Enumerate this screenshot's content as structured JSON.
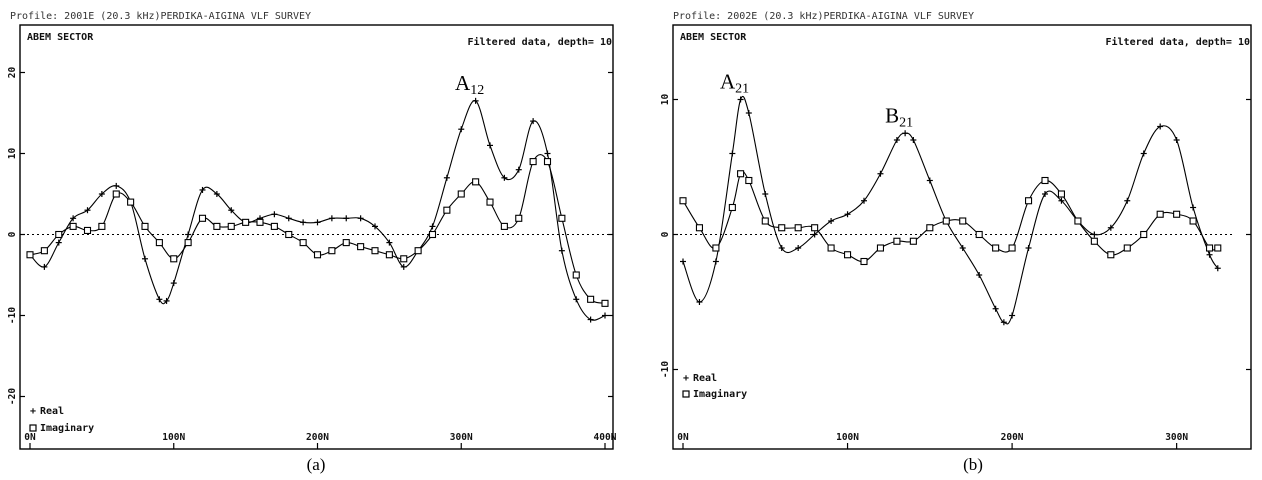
{
  "chart_data": [
    {
      "type": "line",
      "panel_caption": "(a)",
      "title": "Profile: 2001E (20.3 kHz)PERDIKA-AIGINA VLF SURVEY",
      "instrument_label": "ABEM SECTOR",
      "filter_label": "Filtered data, depth= 10",
      "xlim": [
        0,
        400
      ],
      "ylim": [
        -25,
        25
      ],
      "x_ticks": [
        0,
        100,
        200,
        300,
        400
      ],
      "x_tick_labels": [
        "0N",
        "100N",
        "200N",
        "300N",
        "400N"
      ],
      "y_ticks": [
        -20,
        -10,
        0,
        10,
        20
      ],
      "y_tick_labels": [
        "-20",
        "-10",
        "0",
        "10",
        "20"
      ],
      "zero_line": true,
      "legend_position": "bottom-left",
      "series": [
        {
          "name": "Real",
          "marker": "+",
          "x": [
            0,
            10,
            20,
            30,
            40,
            50,
            60,
            70,
            80,
            90,
            95,
            100,
            110,
            120,
            130,
            140,
            150,
            160,
            170,
            180,
            190,
            200,
            210,
            220,
            230,
            240,
            250,
            260,
            270,
            280,
            290,
            300,
            310,
            320,
            330,
            340,
            350,
            360,
            370,
            380,
            390,
            400
          ],
          "y": [
            -2.5,
            -4,
            -1,
            2,
            3,
            5,
            6,
            4,
            -3,
            -8,
            -8.2,
            -6,
            0,
            5.5,
            5,
            3,
            1.5,
            2,
            2.5,
            2,
            1.5,
            1.5,
            2,
            2,
            2,
            1,
            -1,
            -4,
            -2,
            1,
            7,
            13,
            16.5,
            11,
            7,
            8,
            14,
            10,
            -2,
            -8,
            -10.5,
            -10
          ]
        },
        {
          "name": "Imaginary",
          "marker": "square",
          "x": [
            0,
            10,
            20,
            30,
            40,
            50,
            60,
            70,
            80,
            90,
            100,
            110,
            120,
            130,
            140,
            150,
            160,
            170,
            180,
            190,
            200,
            210,
            220,
            230,
            240,
            250,
            260,
            270,
            280,
            290,
            300,
            310,
            320,
            330,
            340,
            350,
            360,
            370,
            380,
            390,
            400
          ],
          "y": [
            -2.5,
            -2,
            0,
            1,
            0.5,
            1,
            5,
            4,
            1,
            -1,
            -3,
            -1,
            2,
            1,
            1,
            1.5,
            1.5,
            1,
            0,
            -1,
            -2.5,
            -2,
            -1,
            -1.5,
            -2,
            -2.5,
            -3,
            -2,
            0,
            3,
            5,
            6.5,
            4,
            1,
            2,
            9,
            9,
            2,
            -5,
            -8,
            -8.5
          ]
        }
      ],
      "annotations": [
        {
          "label": "A",
          "subscript": "12",
          "x": 310,
          "y": 16.5
        }
      ]
    },
    {
      "type": "line",
      "panel_caption": "(b)",
      "title": "Profile: 2002E (20.3 kHz)PERDIKA-AIGINA VLF SURVEY",
      "instrument_label": "ABEM SECTOR",
      "filter_label": "Filtered data, depth= 10",
      "xlim": [
        0,
        330
      ],
      "ylim": [
        -15,
        15
      ],
      "x_ticks": [
        0,
        100,
        200,
        300
      ],
      "x_tick_labels": [
        "0N",
        "100N",
        "200N",
        "300N"
      ],
      "y_ticks": [
        -10,
        0,
        10
      ],
      "y_tick_labels": [
        "-10",
        "0",
        "10"
      ],
      "zero_line": true,
      "legend_position": "bottom-left",
      "series": [
        {
          "name": "Real",
          "marker": "+",
          "x": [
            0,
            10,
            20,
            30,
            35,
            40,
            50,
            60,
            70,
            80,
            90,
            100,
            110,
            120,
            130,
            135,
            140,
            150,
            160,
            170,
            180,
            190,
            195,
            200,
            210,
            220,
            230,
            240,
            250,
            260,
            270,
            280,
            290,
            300,
            310,
            320,
            325
          ],
          "y": [
            -2,
            -5,
            -2,
            6,
            10,
            9,
            3,
            -1,
            -1,
            0,
            1,
            1.5,
            2.5,
            4.5,
            7,
            7.5,
            7,
            4,
            1,
            -1,
            -3,
            -5.5,
            -6.5,
            -6,
            -1,
            3,
            2.5,
            1,
            0,
            0.5,
            2.5,
            6,
            8,
            7,
            2,
            -1.5,
            -2.5
          ]
        },
        {
          "name": "Imaginary",
          "marker": "square",
          "x": [
            0,
            10,
            20,
            30,
            35,
            40,
            50,
            60,
            70,
            80,
            90,
            100,
            110,
            120,
            130,
            140,
            150,
            160,
            170,
            180,
            190,
            200,
            210,
            220,
            230,
            240,
            250,
            260,
            270,
            280,
            290,
            300,
            310,
            320,
            325
          ],
          "y": [
            2.5,
            0.5,
            -1,
            2,
            4.5,
            4,
            1,
            0.5,
            0.5,
            0.5,
            -1,
            -1.5,
            -2,
            -1,
            -0.5,
            -0.5,
            0.5,
            1,
            1,
            0,
            -1,
            -1,
            2.5,
            4,
            3,
            1,
            -0.5,
            -1.5,
            -1,
            0,
            1.5,
            1.5,
            1,
            -1,
            -1
          ]
        }
      ],
      "annotations": [
        {
          "label": "A",
          "subscript": "21",
          "x": 35,
          "y": 10
        },
        {
          "label": "B",
          "subscript": "21",
          "x": 135,
          "y": 7.5
        }
      ]
    }
  ]
}
